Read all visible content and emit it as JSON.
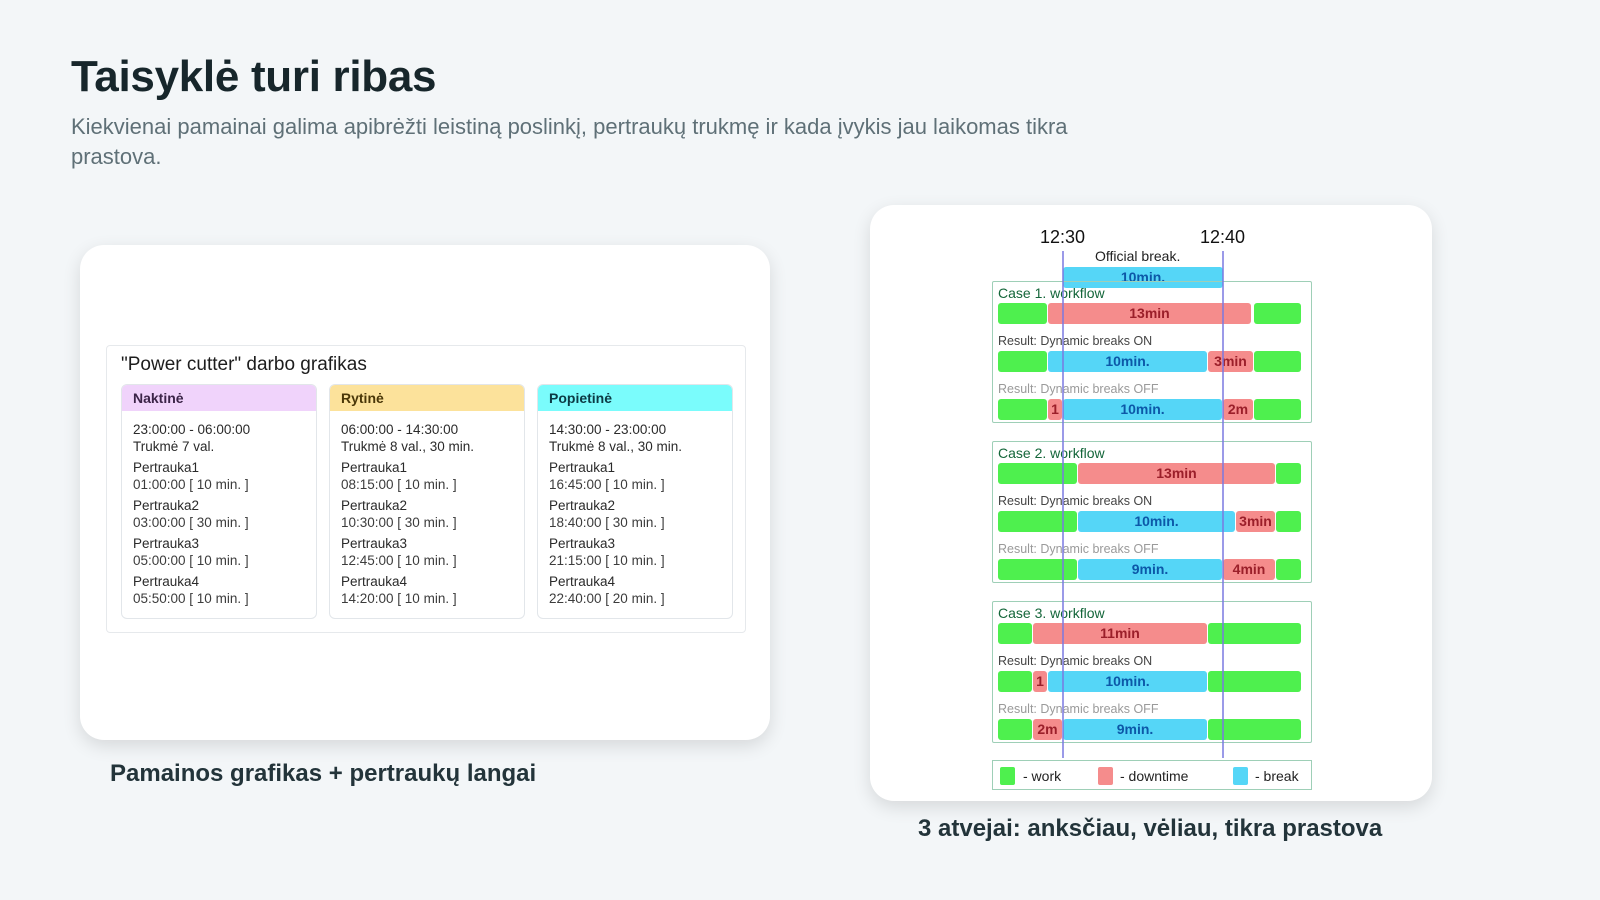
{
  "slide": {
    "title": "Taisyklė turi ribas",
    "subtitle": "Kiekvienai pamainai galima apibrėžti leistiną poslinkį, pertraukų trukmę ir kada įvykis jau laikomas tikra prastova."
  },
  "schedule": {
    "title": "\"Power cutter\" darbo grafikas",
    "shifts": [
      {
        "name": "Naktinė",
        "color": "#f0d3fb",
        "hours": "23:00:00 - 06:00:00",
        "duration": "Trukmė 7 val.",
        "breaks": [
          {
            "name": "Pertrauka1",
            "time": "01:00:00 [ 10 min. ]"
          },
          {
            "name": "Pertrauka2",
            "time": "03:00:00 [ 30 min. ]"
          },
          {
            "name": "Pertrauka3",
            "time": "05:00:00 [ 10 min. ]"
          },
          {
            "name": "Pertrauka4",
            "time": "05:50:00 [ 10 min. ]"
          }
        ]
      },
      {
        "name": "Rytinė",
        "color": "#fce29b",
        "hours": "06:00:00 - 14:30:00",
        "duration": "Trukmė 8 val., 30 min.",
        "breaks": [
          {
            "name": "Pertrauka1",
            "time": "08:15:00 [ 10 min. ]"
          },
          {
            "name": "Pertrauka2",
            "time": "10:30:00 [ 30 min. ]"
          },
          {
            "name": "Pertrauka3",
            "time": "12:45:00 [ 10 min. ]"
          },
          {
            "name": "Pertrauka4",
            "time": "14:20:00 [ 10 min. ]"
          }
        ]
      },
      {
        "name": "Popietinė",
        "color": "#7afcfc",
        "hours": "14:30:00 - 23:00:00",
        "duration": "Trukmė 8 val., 30 min.",
        "breaks": [
          {
            "name": "Pertrauka1",
            "time": "16:45:00 [ 10 min. ]"
          },
          {
            "name": "Pertrauka2",
            "time": "18:40:00 [ 30 min. ]"
          },
          {
            "name": "Pertrauka3",
            "time": "21:15:00 [ 10 min. ]"
          },
          {
            "name": "Pertrauka4",
            "time": "22:40:00 [ 20 min. ]"
          }
        ]
      }
    ]
  },
  "captions": {
    "left": "Pamainos grafikas + pertraukų langai",
    "right": "3 atvejai: anksčiau, vėliau, tikra prastova"
  },
  "chart_data": {
    "type": "timeline",
    "time_labels": [
      "12:30",
      "12:40"
    ],
    "official_break": {
      "label": "Official break.",
      "bar": "10min."
    },
    "result_on_label": "Result: Dynamic breaks ON",
    "result_off_label": "Result: Dynamic breaks OFF",
    "cases": [
      {
        "title": "Case 1. workflow",
        "workflow": [
          {
            "type": "work",
            "text": ""
          },
          {
            "type": "downtime",
            "text": "13min"
          },
          {
            "type": "work",
            "text": ""
          }
        ],
        "on": [
          {
            "type": "work",
            "text": ""
          },
          {
            "type": "break",
            "text": "10min."
          },
          {
            "type": "downtime",
            "text": "3min"
          },
          {
            "type": "work",
            "text": ""
          }
        ],
        "off": [
          {
            "type": "work",
            "text": ""
          },
          {
            "type": "downtime",
            "text": "1"
          },
          {
            "type": "break",
            "text": "10min."
          },
          {
            "type": "downtime",
            "text": "2m"
          },
          {
            "type": "work",
            "text": ""
          }
        ]
      },
      {
        "title": "Case 2. workflow",
        "workflow": [
          {
            "type": "work",
            "text": ""
          },
          {
            "type": "downtime",
            "text": "13min"
          },
          {
            "type": "work",
            "text": ""
          }
        ],
        "on": [
          {
            "type": "work",
            "text": ""
          },
          {
            "type": "break",
            "text": "10min."
          },
          {
            "type": "downtime",
            "text": "3min"
          },
          {
            "type": "work",
            "text": ""
          }
        ],
        "off": [
          {
            "type": "work",
            "text": ""
          },
          {
            "type": "break",
            "text": "9min."
          },
          {
            "type": "downtime",
            "text": "4min"
          },
          {
            "type": "work",
            "text": ""
          }
        ]
      },
      {
        "title": "Case 3. workflow",
        "workflow": [
          {
            "type": "work",
            "text": ""
          },
          {
            "type": "downtime",
            "text": "11min"
          },
          {
            "type": "work",
            "text": ""
          }
        ],
        "on": [
          {
            "type": "work",
            "text": ""
          },
          {
            "type": "downtime",
            "text": "1"
          },
          {
            "type": "break",
            "text": "10min."
          },
          {
            "type": "work",
            "text": ""
          }
        ],
        "off": [
          {
            "type": "work",
            "text": ""
          },
          {
            "type": "downtime",
            "text": "2m"
          },
          {
            "type": "break",
            "text": "9min."
          },
          {
            "type": "work",
            "text": ""
          }
        ]
      }
    ],
    "legend": [
      {
        "type": "work",
        "label": "- work",
        "color": "#4ef04e"
      },
      {
        "type": "downtime",
        "label": "- downtime",
        "color": "#f58c8c"
      },
      {
        "type": "break",
        "label": "- break",
        "color": "#55d6f7"
      }
    ]
  }
}
